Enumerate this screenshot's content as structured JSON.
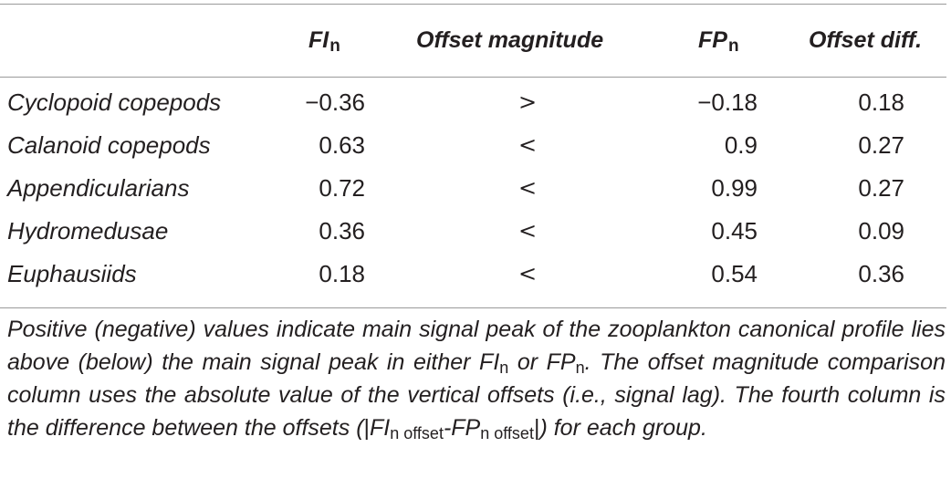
{
  "table": {
    "headers": {
      "fi": "FI",
      "fi_sub": "n",
      "offset_magnitude": "Offset magnitude",
      "fp": "FP",
      "fp_sub": "n",
      "offset_diff": "Offset diff."
    },
    "rows": [
      {
        "group": "Cyclopoid copepods",
        "fi": "−0.36",
        "cmp": ">",
        "fp": "−0.18",
        "diff": "0.18"
      },
      {
        "group": "Calanoid copepods",
        "fi": "0.63",
        "cmp": "<",
        "fp": "0.9",
        "diff": "0.27"
      },
      {
        "group": "Appendicularians",
        "fi": "0.72",
        "cmp": "<",
        "fp": "0.99",
        "diff": "0.27"
      },
      {
        "group": "Hydromedusae",
        "fi": "0.36",
        "cmp": "<",
        "fp": "0.45",
        "diff": "0.09"
      },
      {
        "group": "Euphausiids",
        "fi": "0.18",
        "cmp": "<",
        "fp": "0.54",
        "diff": "0.36"
      }
    ]
  },
  "caption": {
    "part1": "Positive (negative) values indicate main signal peak of the zooplankton canonical profile lies above (below) the main signal peak in either ",
    "fi": "FI",
    "fi_sub": "n",
    "or": " or ",
    "fp": "FP",
    "fp_sub": "n",
    "part2": ". The offset magnitude comparison column uses the absolute value of the vertical offsets (i.e., signal lag). The fourth column is the difference between the offsets (",
    "bar_open": "|",
    "abs_fi": "FI",
    "abs_fi_sub": "n offset",
    "dash": "-",
    "abs_fp": "FP",
    "abs_fp_sub": "n offset",
    "bar_close": "|",
    "part3": ") for each group."
  }
}
